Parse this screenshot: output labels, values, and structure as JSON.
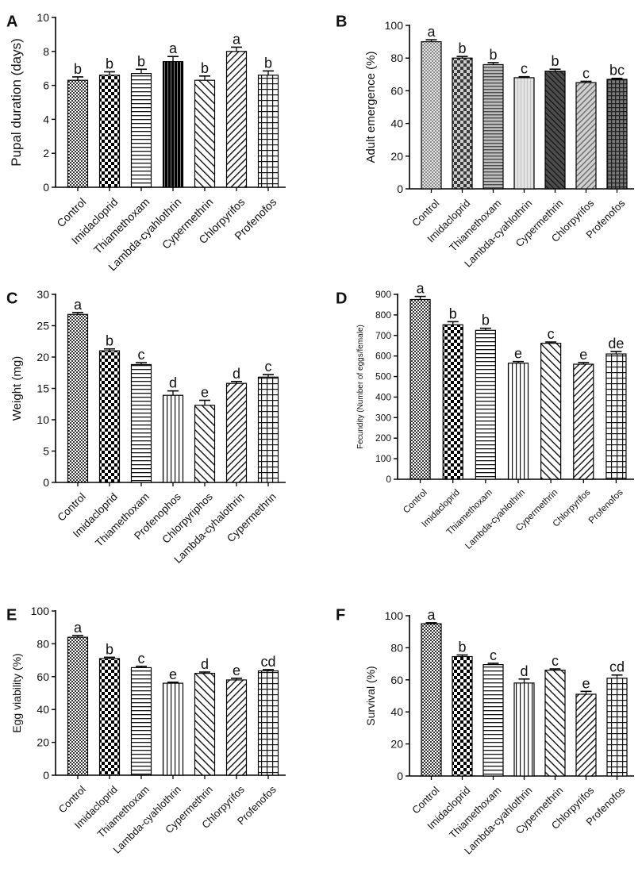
{
  "figure": {
    "panels": [
      "A",
      "B",
      "C",
      "D",
      "E",
      "F"
    ]
  },
  "chart_data": [
    {
      "panel": "A",
      "type": "bar",
      "title": "",
      "xlabel": "",
      "ylabel": "Pupal duration (days)",
      "ylim": [
        0,
        10
      ],
      "yticks": [
        0,
        2,
        4,
        6,
        8,
        10
      ],
      "categories": [
        "Control",
        "Imidacloprid",
        "Thiamethoxam",
        "Lambda-cyahlothrin",
        "Cypermethrin",
        "Chlorpyrifos",
        "Profenofos"
      ],
      "values": [
        6.3,
        6.6,
        6.7,
        7.4,
        6.3,
        8.0,
        6.6
      ],
      "errors": [
        0.2,
        0.2,
        0.25,
        0.3,
        0.25,
        0.25,
        0.25
      ],
      "letters": [
        "b",
        "b",
        "b",
        "a",
        "b",
        "a",
        "b"
      ],
      "patterns": [
        "dots",
        "checker",
        "hlines",
        "solid",
        "diag-fwd",
        "diag-back",
        "grid"
      ]
    },
    {
      "panel": "B",
      "type": "bar",
      "title": "",
      "xlabel": "",
      "ylabel": "Adult emergence (%)",
      "ylim": [
        0,
        100
      ],
      "yticks": [
        0,
        20,
        40,
        60,
        80,
        100
      ],
      "categories": [
        "Control",
        "Imidacloprid",
        "Thiamethoxam",
        "Lambda-cyahlothrin",
        "Cypermethrin",
        "Chlorpyrifos",
        "Profenofos"
      ],
      "values": [
        90,
        80,
        76,
        68,
        72,
        65,
        67
      ],
      "errors": [
        1.2,
        1.0,
        1.2,
        0.6,
        1.2,
        0.8,
        0.6
      ],
      "letters": [
        "a",
        "b",
        "b",
        "c",
        "b",
        "c",
        "bc"
      ],
      "patterns": [
        "dots-grey",
        "checker-grey",
        "hlines-grey",
        "light-grey",
        "diag-dark",
        "diag-grey",
        "grid-dark"
      ]
    },
    {
      "panel": "C",
      "type": "bar",
      "title": "",
      "xlabel": "",
      "ylabel": "Weight (mg)",
      "ylim": [
        0,
        30
      ],
      "yticks": [
        0,
        5,
        10,
        15,
        20,
        25,
        30
      ],
      "categories": [
        "Control",
        "Imidacloprid",
        "Thiamethoxam",
        "Profenophos",
        "Chlorpyriphos",
        "Lambda-cyhalothrin",
        "Cypermethrin"
      ],
      "values": [
        26.8,
        21.0,
        18.8,
        13.9,
        12.3,
        15.8,
        16.8
      ],
      "errors": [
        0.3,
        0.3,
        0.3,
        0.7,
        0.8,
        0.3,
        0.4
      ],
      "letters": [
        "a",
        "b",
        "c",
        "d",
        "e",
        "d",
        "c"
      ],
      "patterns": [
        "dots",
        "checker",
        "hlines",
        "vlines",
        "diag-fwd",
        "diag-back",
        "grid"
      ]
    },
    {
      "panel": "D",
      "type": "bar",
      "title": "",
      "xlabel": "",
      "ylabel": "Fecundity (Number of eggs/female)",
      "ylim": [
        0,
        900
      ],
      "yticks": [
        0,
        100,
        200,
        300,
        400,
        500,
        600,
        700,
        800,
        900
      ],
      "categories": [
        "Control",
        "Imidacloprid",
        "Thiamethoxam",
        "Lambda-cyahlothrin",
        "Cypermethrin",
        "Chlorpyrifos",
        "Profenofos"
      ],
      "values": [
        875,
        752,
        725,
        565,
        662,
        560,
        610
      ],
      "errors": [
        15,
        15,
        10,
        8,
        6,
        8,
        12
      ],
      "letters": [
        "a",
        "b",
        "b",
        "e",
        "c",
        "e",
        "de"
      ],
      "patterns": [
        "dots",
        "checker",
        "hlines",
        "vlines",
        "diag-fwd",
        "diag-back",
        "grid"
      ]
    },
    {
      "panel": "E",
      "type": "bar",
      "title": "",
      "xlabel": "",
      "ylabel": "Egg viability (%)",
      "ylim": [
        0,
        100
      ],
      "yticks": [
        0,
        20,
        40,
        60,
        80,
        100
      ],
      "categories": [
        "Control",
        "Imidacloprid",
        "Thiamethoxam",
        "Lambda-cyahlothrin",
        "Cypermethrin",
        "Chlorpyrifos",
        "Profenofos"
      ],
      "values": [
        84,
        71,
        65.5,
        56,
        62,
        58,
        63.5
      ],
      "errors": [
        1.0,
        0.8,
        0.8,
        0.6,
        0.8,
        1.0,
        0.8
      ],
      "letters": [
        "a",
        "b",
        "c",
        "e",
        "d",
        "e",
        "cd"
      ],
      "patterns": [
        "dots",
        "checker",
        "hlines",
        "vlines",
        "diag-fwd",
        "diag-back",
        "grid"
      ]
    },
    {
      "panel": "F",
      "type": "bar",
      "title": "",
      "xlabel": "",
      "ylabel": "Survival (%)",
      "ylim": [
        0,
        100
      ],
      "yticks": [
        0,
        20,
        40,
        60,
        80,
        100
      ],
      "categories": [
        "Control",
        "Imidacloprid",
        "Thiamethoxam",
        "Lambda-cyahlothrin",
        "Cypermethrin",
        "Chlorpyrifos",
        "Profenofos"
      ],
      "values": [
        95,
        74.5,
        69.5,
        58,
        66,
        51,
        61
      ],
      "errors": [
        0.6,
        1.0,
        0.8,
        2.5,
        0.8,
        1.8,
        2.0
      ],
      "letters": [
        "a",
        "b",
        "c",
        "d",
        "c",
        "e",
        "cd"
      ],
      "patterns": [
        "dots",
        "checker",
        "hlines",
        "vlines",
        "diag-fwd",
        "diag-back",
        "grid"
      ]
    }
  ]
}
